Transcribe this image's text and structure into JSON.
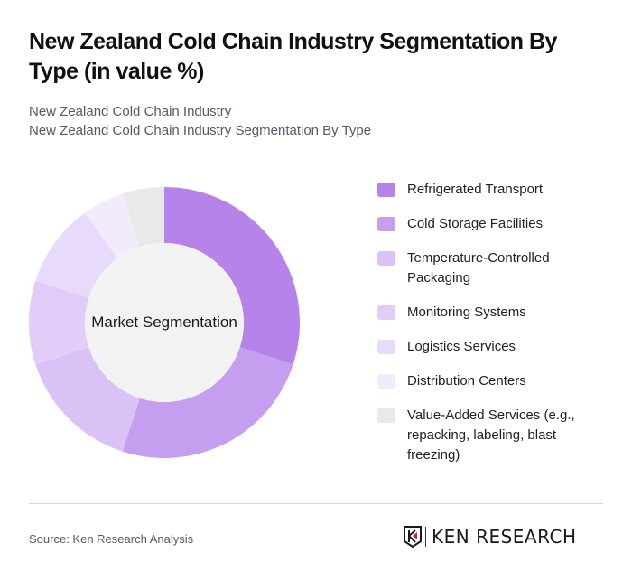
{
  "header": {
    "title": "New Zealand Cold Chain Industry Segmentation By Type (in value %)",
    "breadcrumb_1": "New Zealand Cold Chain Industry",
    "breadcrumb_2": "New Zealand Cold Chain Industry Segmentation By Type"
  },
  "chart": {
    "center_label": "Market Segmentation"
  },
  "legend": {
    "items": [
      {
        "label": "Refrigerated Transport",
        "color": "#b583ea"
      },
      {
        "label": "Cold Storage Facilities",
        "color": "#c69ef0"
      },
      {
        "label": "Temperature-Controlled Packaging",
        "color": "#dac2f6"
      },
      {
        "label": "Monitoring Systems",
        "color": "#e1cdf7"
      },
      {
        "label": "Logistics Services",
        "color": "#e8dafa"
      },
      {
        "label": "Distribution Centers",
        "color": "#f2ebfc"
      },
      {
        "label": "Value-Added Services (e.g., repacking, labeling, blast freezing)",
        "color": "#e9e9e9"
      }
    ]
  },
  "footer": {
    "source": "Source: Ken Research Analysis",
    "logo_text": "KEN RESEARCH",
    "logo_accent": "#d0202e"
  },
  "chart_data": {
    "type": "pie",
    "title": "New Zealand Cold Chain Industry Segmentation By Type (in value %)",
    "center_label": "Market Segmentation",
    "categories": [
      "Refrigerated Transport",
      "Cold Storage Facilities",
      "Temperature-Controlled Packaging",
      "Monitoring Systems",
      "Logistics Services",
      "Distribution Centers",
      "Value-Added Services (e.g., repacking, labeling, blast freezing)"
    ],
    "values": [
      30,
      25,
      15,
      10,
      10,
      5,
      5
    ],
    "colors": [
      "#b583ea",
      "#c69ef0",
      "#dac2f6",
      "#e1cdf7",
      "#e8dafa",
      "#f2ebfc",
      "#e9e9e9"
    ],
    "donut": true,
    "legend_position": "right",
    "unit": "%"
  }
}
